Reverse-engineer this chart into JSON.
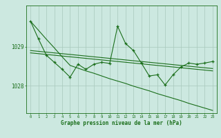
{
  "xlabel": "Graphe pression niveau de la mer (hPa)",
  "x": [
    0,
    1,
    2,
    3,
    4,
    5,
    6,
    7,
    8,
    9,
    10,
    11,
    12,
    13,
    14,
    15,
    16,
    17,
    18,
    19,
    20,
    21,
    22,
    23
  ],
  "line_diag": [
    1029.65,
    1029.42,
    1029.19,
    1028.97,
    1028.74,
    1028.52,
    1028.45,
    1028.38,
    1028.32,
    1028.25,
    1028.18,
    1028.12,
    1028.06,
    1027.99,
    1027.93,
    1027.87,
    1027.8,
    1027.74,
    1027.68,
    1027.62,
    1027.55,
    1027.49,
    1027.43,
    1027.37
  ],
  "line_flat1": [
    1028.9,
    1028.88,
    1028.86,
    1028.84,
    1028.82,
    1028.8,
    1028.78,
    1028.76,
    1028.74,
    1028.72,
    1028.7,
    1028.68,
    1028.66,
    1028.64,
    1028.62,
    1028.6,
    1028.58,
    1028.56,
    1028.54,
    1028.52,
    1028.5,
    1028.48,
    1028.46,
    1028.44
  ],
  "line_flat2": [
    1028.84,
    1028.82,
    1028.8,
    1028.78,
    1028.76,
    1028.74,
    1028.72,
    1028.7,
    1028.68,
    1028.66,
    1028.64,
    1028.62,
    1028.6,
    1028.58,
    1028.56,
    1028.54,
    1028.52,
    1028.5,
    1028.48,
    1028.46,
    1028.44,
    1028.42,
    1028.4,
    1028.38
  ],
  "line_zigzag": [
    1029.65,
    1029.2,
    1028.78,
    1028.6,
    1028.42,
    1028.22,
    1028.55,
    1028.42,
    1028.55,
    1028.6,
    1028.57,
    1029.52,
    1029.08,
    1028.9,
    1028.58,
    1028.25,
    1028.28,
    1028.02,
    1028.28,
    1028.48,
    1028.58,
    1028.55,
    1028.58,
    1028.62
  ],
  "line_color": "#1a6e1a",
  "background_color": "#cce8e0",
  "grid_color": "#a8c8bc",
  "ylabel_values": [
    1028,
    1029
  ],
  "ylim": [
    1027.3,
    1030.05
  ],
  "xlim": [
    -0.5,
    23.5
  ]
}
